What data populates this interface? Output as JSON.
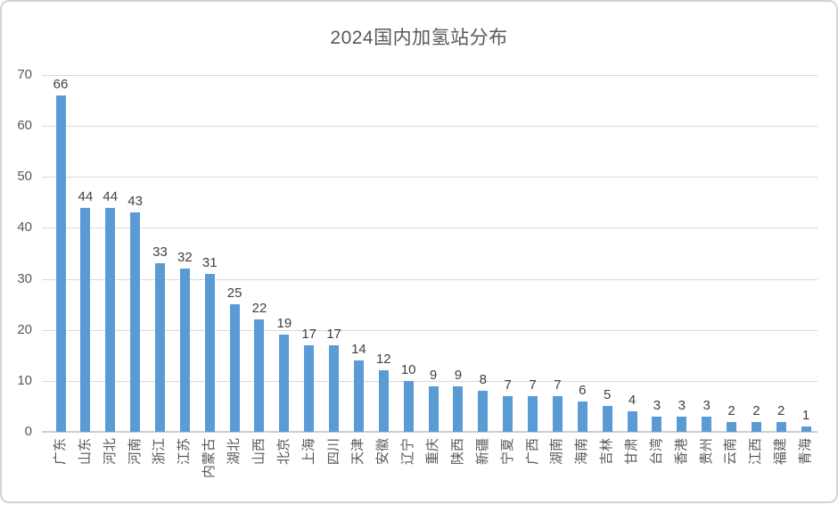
{
  "chart_data": {
    "type": "bar",
    "title": "2024国内加氢站分布",
    "categories": [
      "广东",
      "山东",
      "河北",
      "河南",
      "浙江",
      "江苏",
      "内蒙古",
      "湖北",
      "山西",
      "北京",
      "上海",
      "四川",
      "天津",
      "安徽",
      "辽宁",
      "重庆",
      "陕西",
      "新疆",
      "宁夏",
      "广西",
      "湖南",
      "海南",
      "吉林",
      "甘肃",
      "台湾",
      "香港",
      "贵州",
      "云南",
      "江西",
      "福建",
      "青海"
    ],
    "values": [
      66,
      44,
      44,
      43,
      33,
      32,
      31,
      25,
      22,
      19,
      17,
      17,
      14,
      12,
      10,
      9,
      9,
      8,
      7,
      7,
      7,
      6,
      5,
      4,
      3,
      3,
      3,
      2,
      2,
      2,
      1
    ],
    "y_ticks": [
      0,
      10,
      20,
      30,
      40,
      50,
      60,
      70
    ],
    "ylim": [
      0,
      70
    ],
    "xlabel": "",
    "ylabel": "",
    "grid": true,
    "legend": false,
    "data_labels": true,
    "colors": {
      "bar": "#5B9BD5",
      "title_text": "#595959",
      "axis_text": "#595959",
      "data_label_text": "#404040",
      "gridline": "#D9D9D9",
      "axis_line": "#CFCDCD",
      "frame_border": "#D5D3D3",
      "background": "#FFFFFF"
    }
  }
}
